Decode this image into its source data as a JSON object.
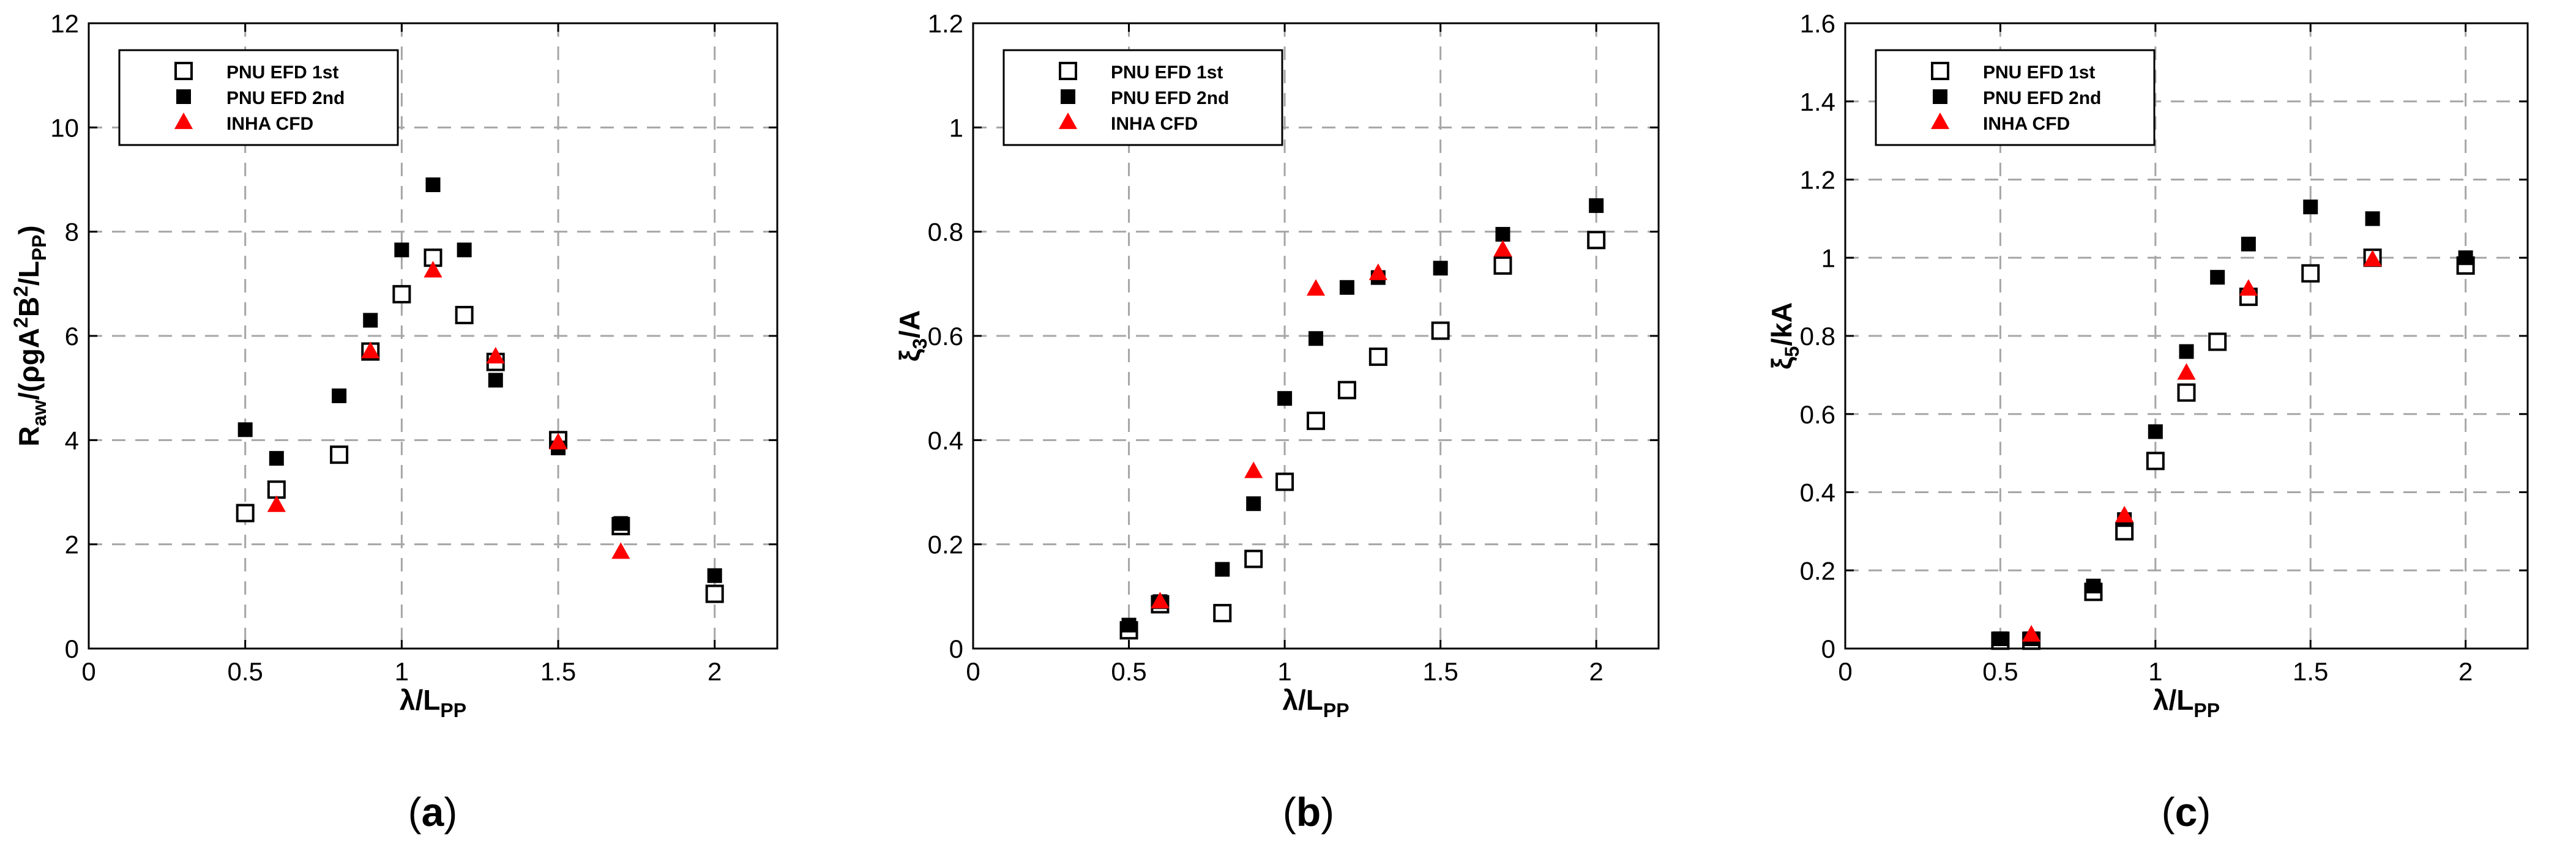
{
  "figure": {
    "captions": [
      "(a)",
      "(b)",
      "(c)"
    ],
    "caption_letters": [
      "a",
      "b",
      "c"
    ]
  },
  "colors": {
    "axes": "#000000",
    "grid": "#a6a6a6",
    "efd_1st": "#000000",
    "efd_2nd": "#000000",
    "cfd": "#ff0000"
  },
  "chart_data": [
    {
      "type": "scatter",
      "xlabel": "λ/L_PP",
      "ylabel": "R_aw/(ρgA²B²/L_PP)",
      "xlim": [
        0,
        2.2
      ],
      "ylim": [
        0,
        12
      ],
      "xticks": [
        "0",
        "0.5",
        "1",
        "1.5",
        "2"
      ],
      "yticks": [
        "0",
        "2",
        "4",
        "6",
        "8",
        "10",
        "12"
      ],
      "grid": true,
      "legend_position": "top-left",
      "series": [
        {
          "name": "PNU EFD 1st",
          "marker": "open-square",
          "x": [
            0.5,
            0.6,
            0.8,
            0.9,
            1.0,
            1.1,
            1.2,
            1.3,
            1.5,
            1.7,
            2.0
          ],
          "y": [
            2.6,
            3.05,
            3.72,
            5.7,
            6.8,
            7.5,
            6.4,
            5.5,
            4.0,
            2.35,
            1.05
          ]
        },
        {
          "name": "PNU EFD 2nd",
          "marker": "filled-square",
          "x": [
            0.5,
            0.6,
            0.8,
            0.9,
            1.0,
            1.1,
            1.2,
            1.3,
            1.5,
            1.7,
            2.0
          ],
          "y": [
            4.2,
            3.65,
            4.85,
            6.3,
            7.65,
            8.9,
            7.65,
            5.15,
            3.85,
            2.4,
            1.4
          ]
        },
        {
          "name": "INHA CFD",
          "marker": "filled-triangle",
          "x": [
            0.6,
            0.9,
            1.1,
            1.3,
            1.5,
            1.7
          ],
          "y": [
            2.75,
            5.7,
            7.25,
            5.6,
            3.95,
            1.85
          ]
        }
      ]
    },
    {
      "type": "scatter",
      "xlabel": "λ/L_PP",
      "ylabel": "ξ3/A",
      "xlim": [
        0,
        2.2
      ],
      "ylim": [
        0,
        1.2
      ],
      "xticks": [
        "0",
        "0.5",
        "1",
        "1.5",
        "2"
      ],
      "yticks": [
        "0",
        "0.2",
        "0.4",
        "0.6",
        "0.8",
        "1",
        "1.2"
      ],
      "grid": true,
      "legend_position": "top-left",
      "series": [
        {
          "name": "PNU EFD 1st",
          "marker": "open-square",
          "x": [
            0.5,
            0.6,
            0.8,
            0.9,
            1.0,
            1.1,
            1.2,
            1.3,
            1.5,
            1.7,
            2.0
          ],
          "y": [
            0.035,
            0.085,
            0.068,
            0.172,
            0.32,
            0.437,
            0.496,
            0.56,
            0.61,
            0.735,
            0.784
          ]
        },
        {
          "name": "PNU EFD 2nd",
          "marker": "filled-square",
          "x": [
            0.5,
            0.6,
            0.8,
            0.9,
            1.0,
            1.1,
            1.2,
            1.3,
            1.5,
            1.7,
            2.0
          ],
          "y": [
            0.045,
            0.09,
            0.152,
            0.278,
            0.48,
            0.595,
            0.693,
            0.712,
            0.73,
            0.795,
            0.85
          ]
        },
        {
          "name": "INHA CFD",
          "marker": "filled-triangle",
          "x": [
            0.6,
            0.9,
            1.1,
            1.3,
            1.7
          ],
          "y": [
            0.09,
            0.34,
            0.69,
            0.72,
            0.765
          ]
        }
      ]
    },
    {
      "type": "scatter",
      "xlabel": "λ/L_PP",
      "ylabel": "ξ5/kA",
      "xlim": [
        0,
        2.2
      ],
      "ylim": [
        0,
        1.6
      ],
      "xticks": [
        "0",
        "0.5",
        "1",
        "1.5",
        "2"
      ],
      "yticks": [
        "0",
        "0.2",
        "0.4",
        "0.6",
        "0.8",
        "1",
        "1.2",
        "1.4",
        "1.6"
      ],
      "grid": true,
      "legend_position": "top-left",
      "series": [
        {
          "name": "PNU EFD 1st",
          "marker": "open-square",
          "x": [
            0.5,
            0.6,
            0.8,
            0.9,
            1.0,
            1.1,
            1.2,
            1.3,
            1.5,
            1.7,
            2.0
          ],
          "y": [
            0.02,
            0.02,
            0.145,
            0.3,
            0.48,
            0.655,
            0.785,
            0.9,
            0.96,
            1.0,
            0.98
          ]
        },
        {
          "name": "PNU EFD 2nd",
          "marker": "filled-square",
          "x": [
            0.5,
            0.6,
            0.8,
            0.9,
            1.0,
            1.1,
            1.2,
            1.3,
            1.5,
            1.7,
            2.0
          ],
          "y": [
            0.025,
            0.025,
            0.16,
            0.33,
            0.555,
            0.76,
            0.95,
            1.035,
            1.13,
            1.1,
            1.0
          ]
        },
        {
          "name": "INHA CFD",
          "marker": "filled-triangle",
          "x": [
            0.6,
            0.9,
            1.1,
            1.3,
            1.7
          ],
          "y": [
            0.035,
            0.34,
            0.705,
            0.92,
            0.995
          ]
        }
      ]
    }
  ]
}
